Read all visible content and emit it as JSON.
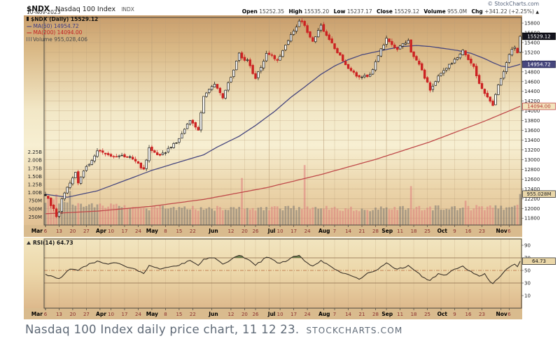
{
  "header": {
    "symbol": "$NDX",
    "name": "Nasdaq 100 Index",
    "exchange": "INDX",
    "date": "10-Nov-2023",
    "copyright": "© StockCharts.com",
    "quote": {
      "open_label": "Open",
      "open": "15252.35",
      "high_label": "High",
      "high": "15535.20",
      "low_label": "Low",
      "low": "15237.17",
      "close_label": "Close",
      "close": "15529.12",
      "volume_label": "Volume",
      "volume": "955.0M",
      "chg_label": "Chg",
      "chg": "+341.22 (+2.25%)",
      "arrow": "▲"
    }
  },
  "legend": {
    "ndx": "$NDX (Daily) 15529.12",
    "ma50_dash": "—",
    "ma50": "MA(50) 14954.72",
    "ma200_dash": "—",
    "ma200": "MA(200) 14094.00",
    "volume": "Volume 955,028,406",
    "rsi": "RSI(14) 64.73"
  },
  "caption": {
    "text": "Nasdaq 100 Index daily price chart, 11 12 23.",
    "source": "STOCKCHARTS.COM"
  },
  "colors": {
    "candle_up_stroke": "#161616",
    "candle_down_stroke": "#cc2222",
    "ma50_line": "#47477e",
    "ma200_line": "#bf4a4a",
    "volume_up": "rgba(110,110,110,0.5)",
    "volume_down": "rgba(222,125,125,0.55)",
    "rsi_line": "#3c332a",
    "rsi_fill": "#55703d",
    "grid": "#b99d78",
    "panel_border": "#4a463e",
    "bg_top": "#c89d6c",
    "bg_mid": "#f7efd2",
    "bg_bottom": "#e2c194",
    "strip_bg": "#d9bb8e",
    "month_label": "#000000",
    "day_label": "#8a2e2e",
    "close_box_bg": "#14141e",
    "ma50_box_bg": "#47477e",
    "ma200_box_border": "#c24848",
    "value_box_bg": "#ead7a9"
  },
  "chart_data": [
    {
      "type": "candlestick",
      "panel": "price",
      "title": "$NDX (Daily)",
      "bars": 175,
      "ylim": [
        11660,
        15915
      ],
      "last_close": 15529.12,
      "y_ticks": [
        15800,
        15600,
        15400,
        15200,
        15000,
        14800,
        14600,
        14400,
        14200,
        14000,
        13800,
        13600,
        13400,
        13200,
        13000,
        12800,
        12600,
        12400,
        12200,
        12000,
        11800
      ],
      "x_ticks": [
        [
          "Mar",
          0,
          1
        ],
        [
          "6",
          0,
          0
        ],
        [
          "13",
          5,
          0
        ],
        [
          "20",
          10,
          0
        ],
        [
          "27",
          15,
          0
        ],
        [
          "Apr",
          20,
          1
        ],
        [
          "10",
          24,
          0
        ],
        [
          "17",
          29,
          0
        ],
        [
          "24",
          34,
          0
        ],
        [
          "May",
          39,
          1
        ],
        [
          "8",
          44,
          0
        ],
        [
          "15",
          49,
          0
        ],
        [
          "22",
          54,
          0
        ],
        [
          "Jun",
          61,
          1
        ],
        [
          "12",
          68,
          0
        ],
        [
          "20",
          73,
          0
        ],
        [
          "26",
          77,
          0
        ],
        [
          "Jul",
          82,
          1
        ],
        [
          "10",
          86,
          0
        ],
        [
          "17",
          91,
          0
        ],
        [
          "24",
          96,
          0
        ],
        [
          "Aug",
          102,
          1
        ],
        [
          "7",
          106,
          0
        ],
        [
          "14",
          111,
          0
        ],
        [
          "21",
          116,
          0
        ],
        [
          "28",
          121,
          0
        ],
        [
          "Sep",
          125,
          1
        ],
        [
          "11",
          130,
          0
        ],
        [
          "18",
          135,
          0
        ],
        [
          "25",
          140,
          0
        ],
        [
          "Oct",
          145,
          1
        ],
        [
          "9",
          150,
          0
        ],
        [
          "16",
          155,
          0
        ],
        [
          "23",
          160,
          0
        ],
        [
          "Nov",
          167,
          1
        ],
        [
          "6",
          170,
          0
        ]
      ],
      "close_anchors": [
        [
          0,
          12261
        ],
        [
          3,
          11995
        ],
        [
          4,
          11830
        ],
        [
          5,
          11923
        ],
        [
          6,
          12200
        ],
        [
          9,
          12520
        ],
        [
          11,
          12741
        ],
        [
          12,
          12521
        ],
        [
          14,
          12767
        ],
        [
          19,
          13181
        ],
        [
          23,
          13100
        ],
        [
          28,
          13090
        ],
        [
          33,
          12970
        ],
        [
          36,
          12806
        ],
        [
          38,
          13246
        ],
        [
          42,
          13090
        ],
        [
          48,
          13340
        ],
        [
          53,
          13803
        ],
        [
          56,
          13604
        ],
        [
          58,
          14298
        ],
        [
          62,
          14547
        ],
        [
          65,
          14264
        ],
        [
          68,
          14689
        ],
        [
          71,
          15185
        ],
        [
          72,
          15083
        ],
        [
          74,
          15045
        ],
        [
          77,
          14663
        ],
        [
          81,
          15179
        ],
        [
          85,
          15036
        ],
        [
          90,
          15565
        ],
        [
          93,
          15841
        ],
        [
          94,
          15827
        ],
        [
          98,
          15425
        ],
        [
          101,
          15757
        ],
        [
          106,
          15274
        ],
        [
          110,
          14945
        ],
        [
          115,
          14694
        ],
        [
          119,
          14750
        ],
        [
          125,
          15491
        ],
        [
          129,
          15258
        ],
        [
          133,
          15445
        ],
        [
          134,
          15202
        ],
        [
          138,
          14836
        ],
        [
          141,
          14423
        ],
        [
          144,
          14715
        ],
        [
          149,
          14973
        ],
        [
          153,
          15246
        ],
        [
          154,
          15147
        ],
        [
          157,
          14909
        ],
        [
          159,
          14561
        ],
        [
          163,
          14197
        ],
        [
          164,
          14109
        ],
        [
          165,
          14335
        ],
        [
          167,
          14665
        ],
        [
          169,
          14990
        ],
        [
          170,
          15157
        ],
        [
          172,
          15301
        ],
        [
          173,
          15188
        ],
        [
          174,
          15529.12
        ]
      ],
      "ma50": {
        "label": "MA(50)",
        "value": 14954.72,
        "anchors": [
          [
            0,
            12290
          ],
          [
            8,
            12230
          ],
          [
            19,
            12360
          ],
          [
            29,
            12570
          ],
          [
            39,
            12780
          ],
          [
            49,
            12950
          ],
          [
            58,
            13100
          ],
          [
            63,
            13260
          ],
          [
            71,
            13480
          ],
          [
            77,
            13700
          ],
          [
            84,
            13990
          ],
          [
            90,
            14280
          ],
          [
            95,
            14490
          ],
          [
            101,
            14750
          ],
          [
            106,
            14920
          ],
          [
            111,
            15050
          ],
          [
            116,
            15150
          ],
          [
            121,
            15210
          ],
          [
            126,
            15270
          ],
          [
            131,
            15320
          ],
          [
            136,
            15340
          ],
          [
            141,
            15320
          ],
          [
            146,
            15280
          ],
          [
            151,
            15240
          ],
          [
            156,
            15180
          ],
          [
            161,
            15070
          ],
          [
            164,
            14990
          ],
          [
            167,
            14920
          ],
          [
            170,
            14890
          ],
          [
            174,
            14954.72
          ]
        ]
      },
      "ma200": {
        "label": "MA(200)",
        "value": 14094.0,
        "anchors": [
          [
            0,
            11890
          ],
          [
            19,
            11945
          ],
          [
            39,
            12045
          ],
          [
            58,
            12185
          ],
          [
            81,
            12425
          ],
          [
            101,
            12695
          ],
          [
            121,
            13005
          ],
          [
            141,
            13365
          ],
          [
            161,
            13790
          ],
          [
            174,
            14094
          ]
        ]
      }
    },
    {
      "type": "bar",
      "panel": "volume",
      "label": "Volume",
      "current": 955028406,
      "current_label": "955.028M",
      "y_ticks": [
        [
          "2.25B",
          2250000000.0
        ],
        [
          "2.00B",
          2000000000.0
        ],
        [
          "1.75B",
          1750000000.0
        ],
        [
          "1.50B",
          1500000000.0
        ],
        [
          "1.25B",
          1250000000.0
        ],
        [
          "1.00B",
          1000000000.0
        ],
        [
          "750M",
          750000000.0
        ],
        [
          "500M",
          500000000.0
        ],
        [
          "250M",
          250000000.0
        ]
      ],
      "base_anchors": [
        [
          0,
          760000000.0
        ],
        [
          15,
          620000000.0
        ],
        [
          38,
          520000000.0
        ],
        [
          88,
          520000000.0
        ],
        [
          128,
          500000000.0
        ],
        [
          174,
          560000000.0
        ]
      ],
      "spikes": [
        [
          4,
          950000000.0
        ],
        [
          9,
          1050000000.0
        ],
        [
          72,
          1450000000.0
        ],
        [
          95,
          1850000000.0
        ],
        [
          134,
          1200000000.0
        ],
        [
          154,
          750000000.0
        ],
        [
          174,
          955028406
        ]
      ]
    },
    {
      "type": "line",
      "panel": "rsi",
      "label": "RSI(14)",
      "current": 64.73,
      "y_ticks": [
        90,
        70,
        50,
        30,
        10
      ],
      "overbought": 70,
      "midline": 50,
      "oversold": 30,
      "anchors": [
        [
          0,
          44
        ],
        [
          3,
          40
        ],
        [
          5,
          37
        ],
        [
          9,
          52
        ],
        [
          12,
          50
        ],
        [
          14,
          56
        ],
        [
          19,
          65
        ],
        [
          23,
          60
        ],
        [
          26,
          62
        ],
        [
          30,
          55
        ],
        [
          33,
          52
        ],
        [
          36,
          45
        ],
        [
          38,
          58
        ],
        [
          42,
          52
        ],
        [
          45,
          55
        ],
        [
          48,
          57
        ],
        [
          53,
          66
        ],
        [
          56,
          58
        ],
        [
          58,
          68
        ],
        [
          62,
          70
        ],
        [
          65,
          60
        ],
        [
          71,
          74
        ],
        [
          74,
          68
        ],
        [
          77,
          58
        ],
        [
          81,
          71
        ],
        [
          83,
          68
        ],
        [
          85,
          62
        ],
        [
          88,
          64
        ],
        [
          90,
          70
        ],
        [
          93,
          74
        ],
        [
          96,
          62
        ],
        [
          98,
          57
        ],
        [
          100,
          62
        ],
        [
          101,
          66
        ],
        [
          104,
          58
        ],
        [
          106,
          52
        ],
        [
          110,
          45
        ],
        [
          113,
          40
        ],
        [
          115,
          36
        ],
        [
          117,
          42
        ],
        [
          119,
          47
        ],
        [
          122,
          52
        ],
        [
          125,
          62
        ],
        [
          127,
          56
        ],
        [
          129,
          52
        ],
        [
          132,
          55
        ],
        [
          133,
          58
        ],
        [
          136,
          48
        ],
        [
          138,
          40
        ],
        [
          141,
          34
        ],
        [
          144,
          45
        ],
        [
          147,
          43
        ],
        [
          149,
          50
        ],
        [
          151,
          53
        ],
        [
          153,
          57
        ],
        [
          155,
          50
        ],
        [
          157,
          45
        ],
        [
          159,
          41
        ],
        [
          161,
          45
        ],
        [
          163,
          32
        ],
        [
          164,
          29
        ],
        [
          165,
          34
        ],
        [
          167,
          42
        ],
        [
          169,
          52
        ],
        [
          170,
          55
        ],
        [
          172,
          60
        ],
        [
          173,
          56
        ],
        [
          174,
          64.73
        ]
      ]
    }
  ]
}
